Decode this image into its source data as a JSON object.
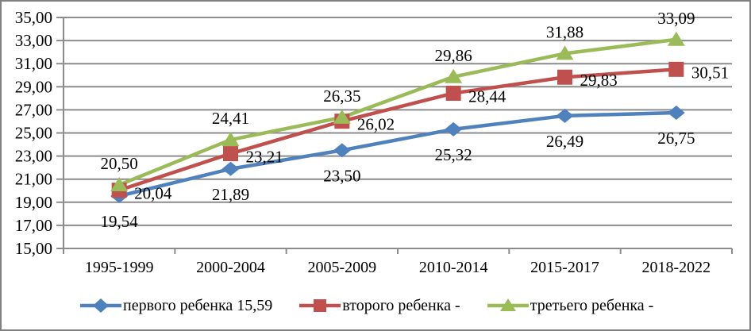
{
  "chart_data": {
    "type": "line",
    "categories": [
      "1995-1999",
      "2000-2004",
      "2005-2009",
      "2010-2014",
      "2015-2017",
      "2018-2022"
    ],
    "y_axis": {
      "min": 15,
      "max": 35,
      "step": 2,
      "tick_values": [
        15,
        17,
        19,
        21,
        23,
        25,
        27,
        29,
        31,
        33,
        35
      ],
      "tick_labels": [
        "15,00",
        "17,00",
        "19,00",
        "21,00",
        "23,00",
        "25,00",
        "27,00",
        "29,00",
        "31,00",
        "33,00",
        "35,00"
      ]
    },
    "series": [
      {
        "name": "первого ребенка 15,59",
        "color": "#4F81BD",
        "marker": "diamond",
        "values": [
          19.54,
          21.89,
          23.5,
          25.32,
          26.49,
          26.75
        ],
        "labels": [
          "19,54",
          "21,89",
          "23,50",
          "25,32",
          "26,49",
          "26,75"
        ]
      },
      {
        "name": "второго ребенка -",
        "color": "#C0504D",
        "marker": "square",
        "values": [
          20.04,
          23.21,
          26.02,
          28.44,
          29.83,
          30.51
        ],
        "labels": [
          "20,04",
          "23,21",
          "26,02",
          "28,44",
          "29,83",
          "30,51"
        ]
      },
      {
        "name": "третьего ребенка -",
        "color": "#9BBB59",
        "marker": "triangle",
        "values": [
          20.5,
          24.41,
          26.35,
          29.86,
          31.88,
          33.09
        ],
        "labels": [
          "20,50",
          "24,41",
          "26,35",
          "29,86",
          "31,88",
          "33,09"
        ]
      }
    ],
    "grid": true,
    "legend_position": "bottom",
    "colors": {
      "grid": "#8c8c8c",
      "axis": "#8c8c8c",
      "border": "#808080",
      "background": "#ffffff",
      "text": "#000000"
    }
  }
}
